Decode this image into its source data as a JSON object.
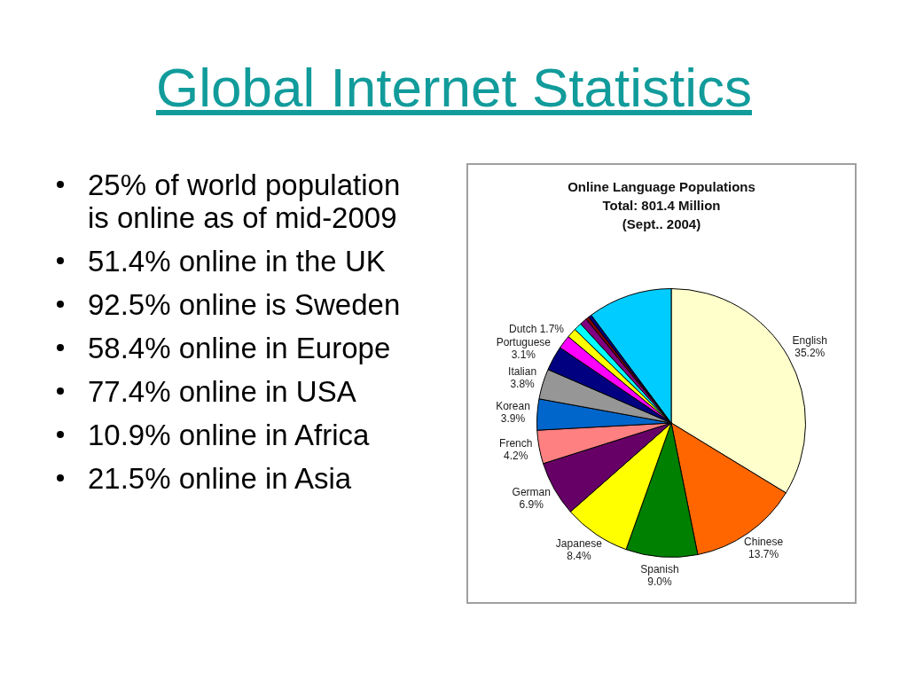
{
  "chart_data": {
    "type": "pie",
    "title": "Global Internet Statistics",
    "subtitle": "Online Language Populations\nTotal: 801.4 Million\n(Sept.. 2004)",
    "categories": [
      "English",
      "Chinese",
      "Spanish",
      "Japanese",
      "German",
      "French",
      "Korean",
      "Italian",
      "Portuguese",
      "Dutch",
      null,
      null,
      null,
      null,
      null,
      null
    ],
    "values": [
      35.2,
      13.7,
      9.0,
      8.4,
      6.9,
      4.2,
      3.9,
      3.8,
      3.1,
      1.7,
      1.2,
      1.0,
      0.9,
      0.4,
      0.4,
      10.6
    ],
    "value_labels": [
      "35.2%",
      "13.7%",
      "9.0%",
      "8.4%",
      "6.9%",
      "4.2%",
      "3.9%",
      "3.8%",
      "3.1%",
      "1.7%",
      null,
      null,
      null,
      null,
      null,
      null
    ],
    "colors": [
      "#ffffcc",
      "#ff6600",
      "#008000",
      "#ffff00",
      "#660066",
      "#ff8080",
      "#0066cc",
      "#969696",
      "#000080",
      "#ff00ff",
      "#ffff00",
      "#00ffff",
      "#800080",
      "#800000",
      "#000080",
      "#00ccff"
    ],
    "annotations": [
      "25% of world population is online as of mid-2009",
      "51.4% online in the UK",
      "92.5% online is Sweden",
      "58.4% online in Europe",
      "77.4% online in USA",
      "10.9% online in Africa",
      "21.5% online in Asia"
    ]
  }
}
